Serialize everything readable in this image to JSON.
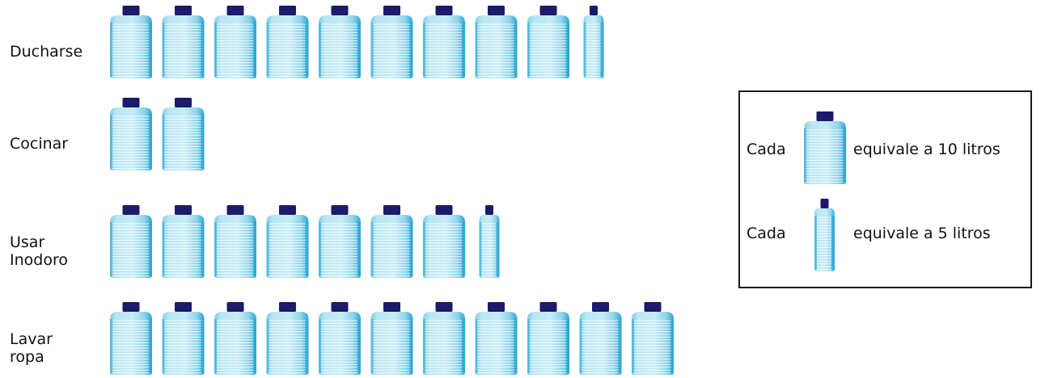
{
  "chart_data": {
    "type": "pictograph",
    "title": "",
    "icon": "water-bottle",
    "categories": [
      "Ducharse",
      "Cocinar",
      "Usar Inodoro",
      "Lavar ropa"
    ],
    "category_lines": [
      [
        "Ducharse"
      ],
      [
        "Cocinar"
      ],
      [
        "Usar",
        "Inodoro"
      ],
      [
        "Lavar",
        "ropa"
      ]
    ],
    "values": [
      95,
      20,
      75,
      110
    ],
    "unit": "litros",
    "icon_values": {
      "large": 10,
      "small": 5
    }
  },
  "legend": {
    "large": {
      "prefix": "Cada",
      "text": "equivale a 10 litros"
    },
    "small": {
      "prefix": "Cada",
      "text": "equivale a 5 litros"
    }
  },
  "colors": {
    "bottle_light": "#b8e6f3",
    "bottle_mid": "#7fcce6",
    "bottle_dark": "#29a7d3",
    "cap": "#1c1a6b",
    "stripe": "#ffffff",
    "border": "#1a1a1a"
  }
}
